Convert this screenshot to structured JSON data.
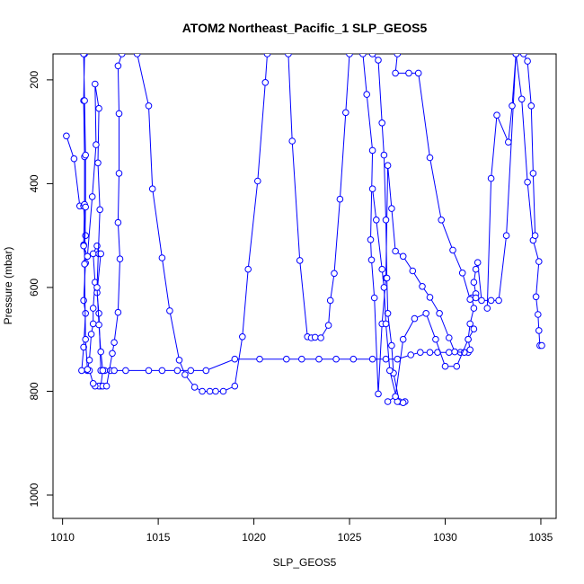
{
  "chart_data": {
    "type": "line",
    "title": "ATOM2 Northeast_Pacific_1 SLP_GEOS5",
    "xlabel": "SLP_GEOS5",
    "ylabel": "Pressure (mbar)",
    "xlim": [
      1009.5,
      1035.8
    ],
    "ylim": [
      1045,
      150
    ],
    "y_reversed": true,
    "x_ticks": [
      1010,
      1015,
      1020,
      1025,
      1030,
      1035
    ],
    "y_ticks": [
      200,
      400,
      600,
      800,
      1000
    ],
    "grid": false,
    "legend": "none",
    "line_color": "#0000ff",
    "series": [
      {
        "points": [
          [
            1010.2,
            308
          ],
          [
            1010.6,
            352
          ],
          [
            1010.9,
            443
          ],
          [
            1011.1,
            443
          ],
          [
            1011.2,
            500
          ],
          [
            1011.1,
            518
          ],
          [
            1011.2,
            553
          ],
          [
            1011.1,
            625
          ],
          [
            1011.2,
            650
          ],
          [
            1011.1,
            715
          ],
          [
            1011.0,
            760
          ],
          [
            1011.3,
            760
          ],
          [
            1011.4,
            740
          ],
          [
            1011.5,
            690
          ],
          [
            1011.6,
            670
          ],
          [
            1011.6,
            640
          ],
          [
            1011.7,
            590
          ],
          [
            1011.6,
            535
          ],
          [
            1011.8,
            520
          ],
          [
            1011.9,
            535
          ],
          [
            1012.0,
            535
          ],
          [
            1011.8,
            610
          ],
          [
            1011.9,
            650
          ],
          [
            1012.0,
            760
          ],
          [
            1012.2,
            760
          ],
          [
            1012.5,
            760
          ],
          [
            1012.7,
            760
          ],
          [
            1013.3,
            760
          ],
          [
            1014.5,
            760
          ],
          [
            1015.2,
            760
          ],
          [
            1016.0,
            760
          ],
          [
            1016.7,
            760
          ],
          [
            1017.5,
            760
          ],
          [
            1019.0,
            738
          ],
          [
            1020.3,
            738
          ],
          [
            1021.7,
            738
          ],
          [
            1022.5,
            738
          ],
          [
            1023.4,
            738
          ],
          [
            1024.3,
            738
          ],
          [
            1025.2,
            738
          ],
          [
            1026.2,
            738
          ],
          [
            1026.9,
            738
          ],
          [
            1027.5,
            738
          ],
          [
            1028.2,
            730
          ],
          [
            1028.7,
            725
          ],
          [
            1029.2,
            725
          ],
          [
            1029.6,
            725
          ],
          [
            1030.2,
            725
          ],
          [
            1030.8,
            725
          ],
          [
            1031.2,
            725
          ],
          [
            1031.3,
            720
          ],
          [
            1031.2,
            700
          ],
          [
            1031.3,
            670
          ],
          [
            1031.5,
            640
          ],
          [
            1031.4,
            620
          ],
          [
            1031.6,
            612
          ],
          [
            1031.5,
            590
          ],
          [
            1031.6,
            565
          ],
          [
            1031.7,
            552
          ],
          [
            1031.9,
            625
          ],
          [
            1032.4,
            625
          ],
          [
            1032.8,
            625
          ],
          [
            1033.2,
            500
          ],
          [
            1033.7,
            150
          ]
        ]
      },
      {
        "points": [
          [
            1011.15,
            150
          ],
          [
            1011.1,
            240
          ],
          [
            1011.15,
            348
          ],
          [
            1011.15,
            440
          ],
          [
            1011.1,
            520
          ],
          [
            1011.3,
            540
          ],
          [
            1011.55,
            425
          ],
          [
            1011.75,
            325
          ],
          [
            1011.7,
            208
          ],
          [
            1011.9,
            255
          ],
          [
            1011.85,
            360
          ],
          [
            1011.95,
            450
          ],
          [
            1011.8,
            600
          ],
          [
            1011.9,
            672
          ],
          [
            1012.0,
            724
          ],
          [
            1012.1,
            760
          ],
          [
            1012.0,
            790
          ],
          [
            1011.9,
            790
          ],
          [
            1011.7,
            790
          ],
          [
            1011.6,
            785
          ],
          [
            1011.4,
            760
          ],
          [
            1011.3,
            758
          ],
          [
            1011.2,
            700
          ],
          [
            1011.15,
            555
          ],
          [
            1011.2,
            445
          ],
          [
            1011.2,
            345
          ],
          [
            1011.15,
            240
          ],
          [
            1011.1,
            150
          ]
        ]
      },
      {
        "points": [
          [
            1012.1,
            790
          ],
          [
            1012.3,
            790
          ],
          [
            1012.6,
            727
          ],
          [
            1012.7,
            706
          ],
          [
            1012.9,
            648
          ],
          [
            1013.0,
            545
          ],
          [
            1012.9,
            475
          ],
          [
            1012.95,
            380
          ],
          [
            1012.95,
            265
          ],
          [
            1012.9,
            173
          ],
          [
            1013.1,
            150
          ]
        ]
      },
      {
        "points": [
          [
            1013.9,
            150
          ],
          [
            1014.5,
            250
          ],
          [
            1014.7,
            410
          ],
          [
            1015.2,
            543
          ],
          [
            1015.6,
            645
          ],
          [
            1016.1,
            740
          ],
          [
            1016.4,
            768
          ],
          [
            1016.9,
            792
          ],
          [
            1017.3,
            800
          ],
          [
            1017.7,
            800
          ],
          [
            1018.0,
            800
          ],
          [
            1018.4,
            800
          ],
          [
            1019.0,
            790
          ],
          [
            1019.4,
            695
          ],
          [
            1019.7,
            565
          ],
          [
            1020.2,
            395
          ],
          [
            1020.6,
            205
          ],
          [
            1020.7,
            150
          ]
        ]
      },
      {
        "points": [
          [
            1021.8,
            150
          ],
          [
            1022.0,
            318
          ],
          [
            1022.4,
            548
          ],
          [
            1022.8,
            695
          ],
          [
            1023.0,
            697
          ],
          [
            1023.2,
            696
          ],
          [
            1023.5,
            697
          ],
          [
            1023.9,
            673
          ],
          [
            1024.0,
            625
          ],
          [
            1024.2,
            573
          ],
          [
            1024.5,
            430
          ],
          [
            1024.8,
            263
          ],
          [
            1025.0,
            150
          ]
        ]
      },
      {
        "points": [
          [
            1025.7,
            150
          ],
          [
            1025.9,
            228
          ],
          [
            1026.2,
            336
          ],
          [
            1026.1,
            508
          ],
          [
            1026.15,
            547
          ],
          [
            1026.3,
            620
          ],
          [
            1026.5,
            805
          ],
          [
            1026.7,
            670
          ],
          [
            1026.9,
            582
          ],
          [
            1027.0,
            365
          ],
          [
            1027.2,
            448
          ],
          [
            1027.4,
            530
          ],
          [
            1027.8,
            540
          ],
          [
            1028.3,
            568
          ],
          [
            1028.8,
            598
          ],
          [
            1029.2,
            619
          ],
          [
            1029.7,
            650
          ],
          [
            1030.2,
            697
          ],
          [
            1030.5,
            724
          ],
          [
            1031.0,
            725
          ]
        ]
      },
      {
        "points": [
          [
            1026.2,
            150
          ],
          [
            1026.5,
            162
          ],
          [
            1026.7,
            283
          ],
          [
            1026.8,
            345
          ],
          [
            1026.9,
            470
          ],
          [
            1026.95,
            582
          ],
          [
            1027.0,
            650
          ],
          [
            1027.2,
            712
          ],
          [
            1027.3,
            765
          ],
          [
            1027.6,
            820
          ],
          [
            1027.9,
            820
          ]
        ]
      },
      {
        "points": [
          [
            1027.5,
            150
          ],
          [
            1027.4,
            187
          ],
          [
            1028.1,
            187
          ],
          [
            1028.6,
            187
          ],
          [
            1029.2,
            350
          ],
          [
            1029.8,
            470
          ],
          [
            1030.4,
            528
          ],
          [
            1030.9,
            572
          ],
          [
            1031.3,
            623
          ],
          [
            1031.6,
            620
          ]
        ]
      },
      {
        "points": [
          [
            1026.2,
            410
          ],
          [
            1026.4,
            470
          ],
          [
            1026.7,
            565
          ],
          [
            1026.8,
            600
          ],
          [
            1026.9,
            670
          ],
          [
            1027.1,
            760
          ],
          [
            1027.5,
            820
          ],
          [
            1027.8,
            822
          ]
        ]
      },
      {
        "points": [
          [
            1027.0,
            820
          ],
          [
            1027.4,
            810
          ],
          [
            1027.8,
            700
          ],
          [
            1028.4,
            660
          ],
          [
            1029.0,
            650
          ],
          [
            1029.5,
            700
          ],
          [
            1030.0,
            752
          ],
          [
            1030.6,
            752
          ],
          [
            1031.2,
            700
          ],
          [
            1031.5,
            680
          ]
        ]
      },
      {
        "points": [
          [
            1033.7,
            150
          ],
          [
            1034.0,
            237
          ],
          [
            1034.3,
            397
          ],
          [
            1034.6,
            509
          ],
          [
            1034.9,
            550
          ],
          [
            1034.75,
            618
          ],
          [
            1034.85,
            652
          ],
          [
            1034.9,
            683
          ],
          [
            1034.95,
            712
          ],
          [
            1035.05,
            712
          ]
        ]
      },
      {
        "points": [
          [
            1032.2,
            640
          ],
          [
            1032.4,
            390
          ],
          [
            1032.7,
            268
          ],
          [
            1033.3,
            320
          ],
          [
            1033.5,
            250
          ],
          [
            1033.7,
            150
          ]
        ]
      },
      {
        "points": [
          [
            1034.1,
            150
          ],
          [
            1034.3,
            164
          ],
          [
            1034.5,
            250
          ],
          [
            1034.6,
            380
          ],
          [
            1034.7,
            500
          ]
        ]
      }
    ]
  }
}
